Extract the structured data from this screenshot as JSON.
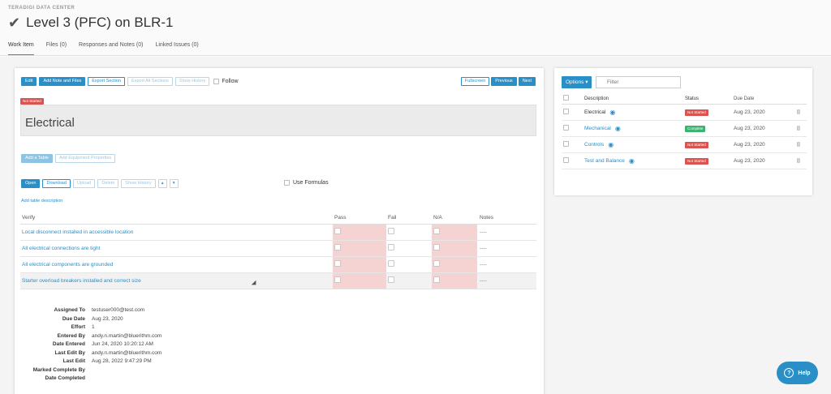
{
  "header": {
    "brand": "TERADIGI DATA CENTER",
    "title": "Level 3 (PFC) on BLR-1",
    "tabs": [
      {
        "label": "Work Item"
      },
      {
        "label": "Files (0)"
      },
      {
        "label": "Responses and Notes (0)"
      },
      {
        "label": "Linked Issues (0)"
      }
    ]
  },
  "toolbar": {
    "edit": "Edit",
    "add_note": "Add Note and Files",
    "export_section": "Export Section",
    "export_all": "Export All Sections",
    "show_history": "Show History",
    "follow": "Follow",
    "fullscreen": "Fullscreen",
    "previous": "Previous",
    "next": "Next"
  },
  "section": {
    "status_badge": "Not Started",
    "title": "Electrical",
    "add_table": "Add a Table",
    "add_equipment": "Add Equipment Properties"
  },
  "table_toolbar": {
    "open": "Open",
    "download": "Download",
    "upload": "Upload",
    "delete": "Delete",
    "show_history": "Show History",
    "use_formulas": "Use Formulas",
    "add_description": "Add table description"
  },
  "verify_table": {
    "headers": {
      "verify": "Verify",
      "pass": "Pass",
      "fail": "Fail",
      "na": "N/A",
      "notes": "Notes"
    },
    "rows": [
      {
        "verify": "Local disconnect installed in accessible location",
        "notes": "----"
      },
      {
        "verify": "All electrical connections are tight",
        "notes": "----"
      },
      {
        "verify": "All electrical components are grounded",
        "notes": "----"
      },
      {
        "verify": "Starter overload breakers installed and correct size",
        "notes": "----"
      }
    ]
  },
  "meta": [
    {
      "label": "Assigned To",
      "value": "testuser000@test.com"
    },
    {
      "label": "Due Date",
      "value": "Aug 23, 2020"
    },
    {
      "label": "Effort",
      "value": "1"
    },
    {
      "label": "Entered By",
      "value": "andy.n.martin@bluerithm.com"
    },
    {
      "label": "Date Entered",
      "value": "Jun 24, 2020 10:20:12 AM"
    },
    {
      "label": "Last Edit By",
      "value": "andy.n.martin@bluerithm.com"
    },
    {
      "label": "Last Edit",
      "value": "Aug 28, 2022 9:47:29 PM"
    },
    {
      "label": "Marked Complete By",
      "value": ""
    },
    {
      "label": "Date Completed",
      "value": ""
    }
  ],
  "sections_panel": {
    "options": "Options",
    "filter_placeholder": "Filter",
    "headers": {
      "description": "Description",
      "status": "Status",
      "due": "Due Date"
    },
    "rows": [
      {
        "description": "Electrical",
        "status": "Not Started",
        "status_color": "#d9534f",
        "due": "Aug 23, 2020",
        "link": false
      },
      {
        "description": "Mechanical",
        "status": "Complete",
        "status_color": "#3cb371",
        "due": "Aug 23, 2020",
        "link": true
      },
      {
        "description": "Controls",
        "status": "Not Started",
        "status_color": "#d9534f",
        "due": "Aug 23, 2020",
        "link": true
      },
      {
        "description": "Test and Balance",
        "status": "Not Started",
        "status_color": "#d9534f",
        "due": "Aug 23, 2020",
        "link": true
      }
    ]
  },
  "help": {
    "label": "Help"
  },
  "colors": {
    "accent": "#2a8fc7",
    "not_started": "#d9534f",
    "complete": "#3cb371",
    "pass_na_fill": "#f6d3d3"
  }
}
